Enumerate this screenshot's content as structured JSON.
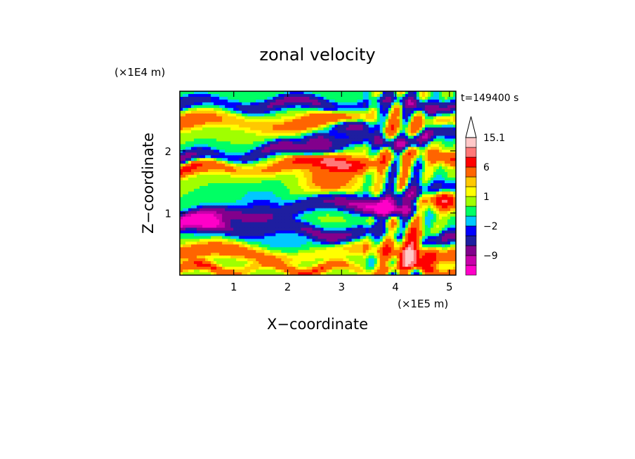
{
  "chart_data": {
    "type": "heatmap",
    "title": "zonal velocity",
    "xlabel": "X−coordinate",
    "ylabel": "Z−coordinate",
    "x_scale_label": "(×1E5 m)",
    "y_scale_label": "(×1E4 m)",
    "time_label": "t=149400 s",
    "xlim": [
      0,
      5.12
    ],
    "ylim": [
      0,
      2.96
    ],
    "x_ticks": [
      {
        "value": 1,
        "label": "1"
      },
      {
        "value": 2,
        "label": "2"
      },
      {
        "value": 3,
        "label": "3"
      },
      {
        "value": 4,
        "label": "4"
      },
      {
        "value": 5,
        "label": "5"
      }
    ],
    "y_ticks": [
      {
        "value": 1,
        "label": "1"
      },
      {
        "value": 2,
        "label": "2"
      }
    ],
    "colorbar": {
      "levels": [
        -15,
        -12,
        -9,
        -6,
        -3,
        -2,
        -1,
        0,
        1,
        2,
        3,
        6,
        9,
        12,
        15.1
      ],
      "colors": [
        "#ff00c8",
        "#c800aa",
        "#82008c",
        "#1e1ea0",
        "#0000ff",
        "#00c8ff",
        "#00ff64",
        "#a0ff00",
        "#ffff00",
        "#ffc800",
        "#ff6400",
        "#ff0000",
        "#ff7878",
        "#ffc8c8"
      ],
      "extend_max": true,
      "labeled_levels": [
        {
          "value": 15.1,
          "label": "15.1"
        },
        {
          "value": 6,
          "label": "6"
        },
        {
          "value": 1,
          "label": "1"
        },
        {
          "value": -2,
          "label": "−2"
        },
        {
          "value": -9,
          "label": "−9"
        }
      ]
    },
    "field_bands": [
      {
        "zc": 2.75,
        "amp": -7,
        "slope": 0.0,
        "width": 0.1,
        "wave": 1.2
      },
      {
        "zc": 2.45,
        "amp": 6,
        "slope": 0.0,
        "width": 0.14,
        "wave": 0.9
      },
      {
        "zc": 2.05,
        "amp": -8,
        "slope": 0.08,
        "width": 0.1,
        "wave": 1.4
      },
      {
        "zc": 1.8,
        "amp": 7,
        "slope": 0.05,
        "width": 0.12,
        "wave": 1.1
      },
      {
        "zc": 1.1,
        "amp": -9,
        "slope": 0.1,
        "width": 0.12,
        "wave": 1.0
      },
      {
        "zc": 0.7,
        "amp": -7,
        "slope": -0.05,
        "width": 0.1,
        "wave": 1.3
      },
      {
        "zc": 0.35,
        "amp": 5,
        "slope": 0.0,
        "width": 0.12,
        "wave": 0.8
      },
      {
        "zc": 0.1,
        "amp": 6,
        "slope": 0.0,
        "width": 0.08,
        "wave": 1.6
      }
    ],
    "field_blobs": [
      {
        "x": 0.5,
        "z": 0.8,
        "amp": -9,
        "sx": 0.3,
        "sz": 0.12
      },
      {
        "x": 1.5,
        "z": 1.0,
        "amp": -3,
        "sx": 0.45,
        "sz": 0.35
      },
      {
        "x": 2.8,
        "z": 1.6,
        "amp": 5,
        "sx": 0.5,
        "sz": 0.35
      },
      {
        "x": 3.3,
        "z": 2.4,
        "amp": -11,
        "sx": 0.45,
        "sz": 0.12
      },
      {
        "x": 2.6,
        "z": 2.15,
        "amp": -9,
        "sx": 0.3,
        "sz": 0.12
      },
      {
        "x": 3.9,
        "z": 1.05,
        "amp": -13,
        "sx": 0.4,
        "sz": 0.1
      },
      {
        "x": 4.3,
        "z": 0.5,
        "amp": 9,
        "sx": 0.3,
        "sz": 0.25
      },
      {
        "x": 4.9,
        "z": 1.2,
        "amp": 9,
        "sx": 0.3,
        "sz": 0.15
      },
      {
        "x": 2.0,
        "z": 0.45,
        "amp": -1.5,
        "sx": 0.6,
        "sz": 0.25
      }
    ]
  }
}
